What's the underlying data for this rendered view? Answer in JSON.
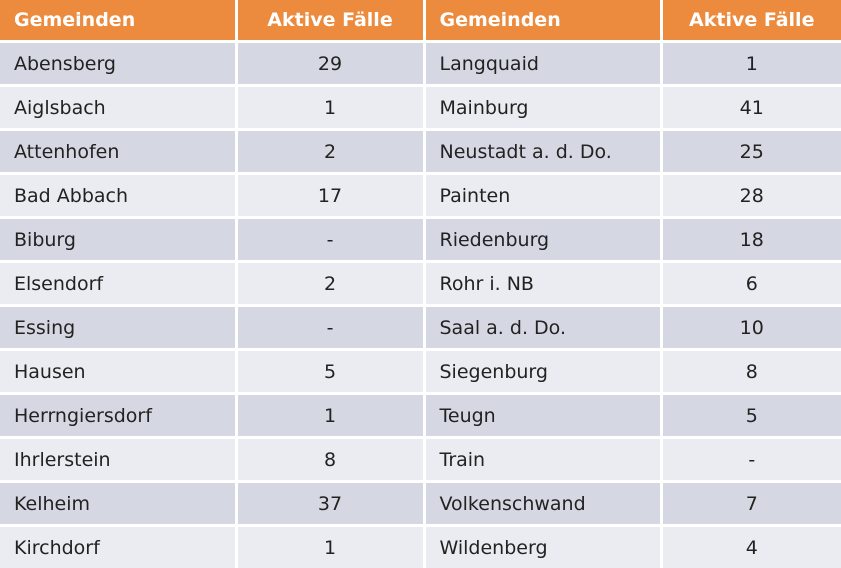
{
  "header": {
    "left_name": "Gemeinden",
    "left_value": "Aktive Fälle",
    "right_name": "Gemeinden",
    "right_value": "Aktive Fälle"
  },
  "rows": [
    {
      "left_name": "Abensberg",
      "left_value": "29",
      "right_name": "Langquaid",
      "right_value": "1"
    },
    {
      "left_name": "Aiglsbach",
      "left_value": "1",
      "right_name": "Mainburg",
      "right_value": "41"
    },
    {
      "left_name": "Attenhofen",
      "left_value": "2",
      "right_name": "Neustadt a. d. Do.",
      "right_value": "25"
    },
    {
      "left_name": "Bad Abbach",
      "left_value": "17",
      "right_name": "Painten",
      "right_value": "28"
    },
    {
      "left_name": "Biburg",
      "left_value": "-",
      "right_name": "Riedenburg",
      "right_value": "18"
    },
    {
      "left_name": "Elsendorf",
      "left_value": "2",
      "right_name": "Rohr i. NB",
      "right_value": "6"
    },
    {
      "left_name": "Essing",
      "left_value": "-",
      "right_name": "Saal a. d. Do.",
      "right_value": "10"
    },
    {
      "left_name": "Hausen",
      "left_value": "5",
      "right_name": "Siegenburg",
      "right_value": "8"
    },
    {
      "left_name": "Herrngiersdorf",
      "left_value": "1",
      "right_name": "Teugn",
      "right_value": "5"
    },
    {
      "left_name": "Ihrlerstein",
      "left_value": "8",
      "right_name": "Train",
      "right_value": "-"
    },
    {
      "left_name": "Kelheim",
      "left_value": "37",
      "right_name": "Volkenschwand",
      "right_value": "7"
    },
    {
      "left_name": "Kirchdorf",
      "left_value": "1",
      "right_name": "Wildenberg",
      "right_value": "4"
    }
  ],
  "colors": {
    "header_bg": "#ec8a3e",
    "row_odd_bg": "#d5d8e2",
    "row_even_bg": "#ebecf1"
  }
}
